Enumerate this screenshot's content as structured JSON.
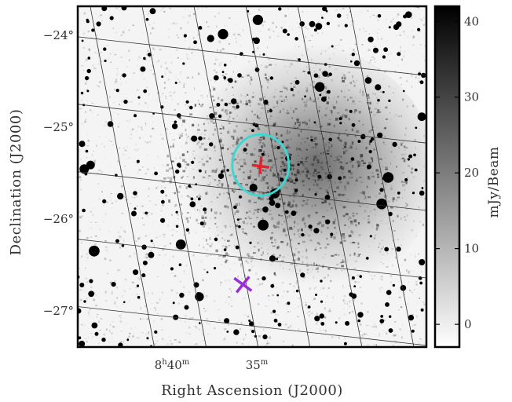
{
  "chart_data": {
    "type": "heatmap",
    "title": "",
    "xlabel": "Right Ascension (J2000)",
    "ylabel": "Declination (J2000)",
    "x_ticks": [
      {
        "value": 130.0,
        "h": "8",
        "m": "40"
      },
      {
        "value": 128.75,
        "h": "",
        "m": "35"
      }
    ],
    "y_ticks": [
      {
        "value": -24,
        "label": "−24°"
      },
      {
        "value": -25,
        "label": "−25°"
      },
      {
        "value": -26,
        "label": "−26°"
      },
      {
        "value": -27,
        "label": "−27°"
      }
    ],
    "grid": true,
    "colorbar": {
      "label": "mJy/Beam",
      "min": -3,
      "max": 42,
      "ticks": [
        0,
        10,
        20,
        30,
        40
      ],
      "tick_labels": [
        "0",
        "10",
        "20",
        "30",
        "40"
      ],
      "colormap": "gray_r"
    },
    "markers": [
      {
        "name": "red-cross",
        "shape": "+",
        "color": "#e8202a",
        "ra": 128.72,
        "dec": -25.45
      },
      {
        "name": "purple-cross",
        "shape": "x",
        "color": "#9b2fd6",
        "ra": 129.3,
        "dec": -26.8
      }
    ],
    "ellipse": {
      "color": "#3fd6d0",
      "ra": 128.72,
      "dec": -25.45
    }
  }
}
